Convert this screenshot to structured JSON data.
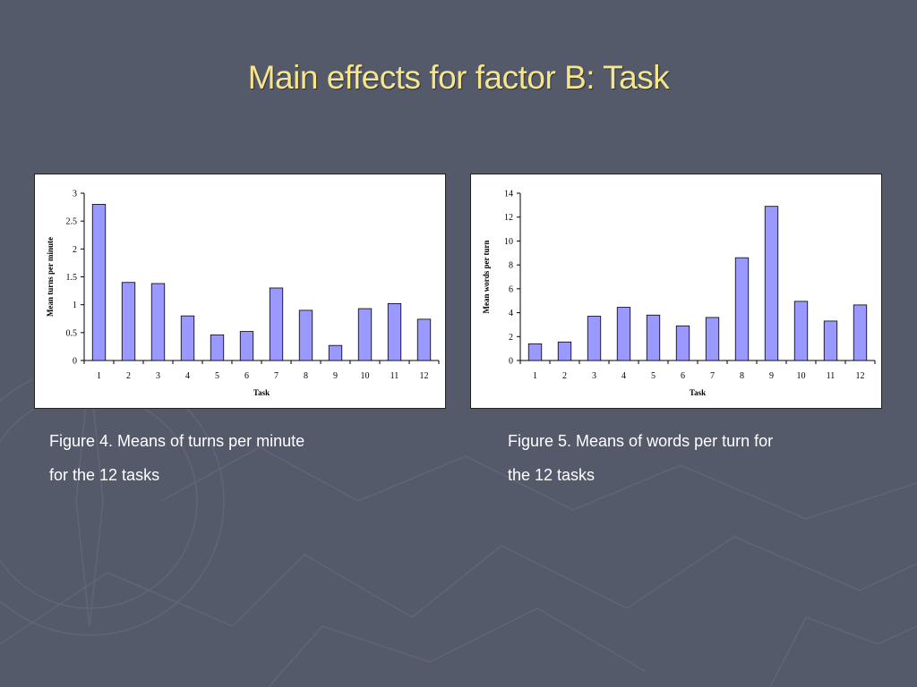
{
  "slide": {
    "title": "Main effects for factor B: Task"
  },
  "colors": {
    "background": "#555a6b",
    "title": "#f5e68c",
    "bar_fill": "#9999ff",
    "bar_stroke": "#000000"
  },
  "captions": [
    {
      "line1": "Figure 4. Means of turns per minute",
      "line2": "for the 12 tasks"
    },
    {
      "line1": "Figure 5. Means of words per turn for",
      "line2": "the 12 tasks"
    }
  ],
  "chart_data": [
    {
      "type": "bar",
      "categories": [
        "1",
        "2",
        "3",
        "4",
        "5",
        "6",
        "7",
        "8",
        "9",
        "10",
        "11",
        "12"
      ],
      "values": [
        2.8,
        1.4,
        1.38,
        0.8,
        0.46,
        0.52,
        1.3,
        0.9,
        0.27,
        0.93,
        1.02,
        0.74
      ],
      "xlabel": "Task",
      "ylabel": "Mean turns per minute",
      "ylim": [
        0,
        3
      ],
      "yticks": [
        "0",
        "0.5",
        "1",
        "1.5",
        "2",
        "2.5",
        "3"
      ],
      "grid": false,
      "legend": false
    },
    {
      "type": "bar",
      "categories": [
        "1",
        "2",
        "3",
        "4",
        "5",
        "6",
        "7",
        "8",
        "9",
        "10",
        "11",
        "12"
      ],
      "values": [
        1.4,
        1.55,
        3.7,
        4.45,
        3.8,
        2.9,
        3.6,
        8.6,
        12.9,
        4.95,
        3.3,
        4.65
      ],
      "xlabel": "Task",
      "ylabel": "Mean words per turn",
      "ylim": [
        0,
        14
      ],
      "yticks": [
        "0",
        "2",
        "4",
        "6",
        "8",
        "10",
        "12",
        "14"
      ],
      "grid": false,
      "legend": false
    }
  ]
}
